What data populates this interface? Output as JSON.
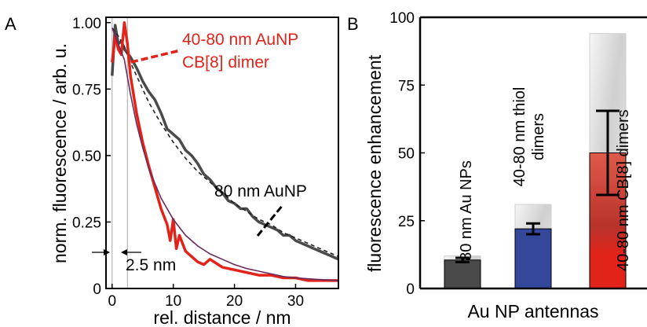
{
  "panels": {
    "a": "A",
    "b": "B"
  },
  "chart_data": [
    {
      "type": "line",
      "xlabel": "rel. distance / nm",
      "ylabel": "norm. fluorescence / arb. u.",
      "xlim": [
        -1,
        37
      ],
      "ylim": [
        0,
        1.02
      ],
      "xticks": [
        "0",
        "10",
        "20",
        "30"
      ],
      "yticks": [
        "0",
        "0.25",
        "0.50",
        "0.75",
        "1.00"
      ],
      "annotations": {
        "dimer_line1": "40-80 nm AuNP",
        "dimer_line2": "CB[8] dimer",
        "single": "80 nm AuNP",
        "gap": "2.5 nm"
      },
      "series": [
        {
          "key": "single",
          "color": "#4a4a4a",
          "x": [
            0,
            0.5,
            1,
            1.5,
            2,
            3,
            4,
            5,
            6,
            7,
            8,
            9,
            10,
            11,
            12,
            13,
            14,
            15,
            16,
            17,
            18,
            19,
            20,
            21,
            22,
            23,
            24,
            25,
            26,
            27,
            28,
            29,
            30,
            31,
            32,
            33,
            34,
            35,
            36,
            37
          ],
          "y": [
            0.8,
            0.99,
            0.92,
            0.93,
            0.9,
            0.87,
            0.83,
            0.78,
            0.74,
            0.71,
            0.66,
            0.6,
            0.58,
            0.56,
            0.52,
            0.5,
            0.47,
            0.43,
            0.41,
            0.38,
            0.36,
            0.33,
            0.32,
            0.3,
            0.3,
            0.27,
            0.25,
            0.24,
            0.23,
            0.22,
            0.2,
            0.2,
            0.18,
            0.17,
            0.16,
            0.15,
            0.14,
            0.13,
            0.12,
            0.11
          ]
        },
        {
          "key": "single-fit",
          "color": "#222222",
          "x": [
            0,
            1,
            2,
            3,
            4,
            6,
            8,
            10,
            12,
            14,
            16,
            18,
            20,
            22,
            24,
            26,
            28,
            30,
            32,
            34,
            36,
            37
          ],
          "y": [
            0.98,
            0.95,
            0.91,
            0.85,
            0.8,
            0.7,
            0.62,
            0.55,
            0.49,
            0.44,
            0.4,
            0.36,
            0.32,
            0.29,
            0.26,
            0.24,
            0.21,
            0.19,
            0.17,
            0.15,
            0.13,
            0.12
          ]
        },
        {
          "key": "dimer",
          "color": "#e2231a",
          "x": [
            0,
            0.5,
            1,
            1.5,
            2,
            2.5,
            3,
            4,
            5,
            6,
            7,
            8,
            9,
            9.5,
            10,
            10.5,
            11,
            12,
            13,
            14,
            15,
            16,
            18,
            20,
            22,
            24,
            26,
            28,
            30,
            32,
            34,
            36,
            37
          ],
          "y": [
            0.85,
            0.95,
            0.9,
            0.88,
            1.0,
            0.92,
            0.8,
            0.66,
            0.55,
            0.46,
            0.38,
            0.3,
            0.24,
            0.18,
            0.26,
            0.15,
            0.2,
            0.14,
            0.12,
            0.1,
            0.09,
            0.11,
            0.08,
            0.07,
            0.06,
            0.05,
            0.05,
            0.04,
            0.04,
            0.03,
            0.03,
            0.03,
            0.03
          ]
        },
        {
          "key": "dimer-fit",
          "color": "#6b2a5c",
          "x": [
            0,
            1,
            2,
            3,
            4,
            5,
            6,
            8,
            10,
            12,
            14,
            16,
            18,
            20,
            22,
            24,
            26,
            28,
            30,
            33,
            37
          ],
          "y": [
            0.98,
            0.92,
            0.86,
            0.73,
            0.62,
            0.53,
            0.45,
            0.34,
            0.26,
            0.2,
            0.16,
            0.13,
            0.11,
            0.09,
            0.075,
            0.065,
            0.055,
            0.045,
            0.04,
            0.035,
            0.03
          ]
        }
      ]
    },
    {
      "type": "bar",
      "xlabel": "Au NP antennas",
      "ylabel": "fluorescence enhancement",
      "ylim": [
        0,
        100
      ],
      "yticks": [
        "0",
        "25",
        "50",
        "75",
        "100"
      ],
      "categories": [
        "80 nm Au NPs",
        "40-80 nm thiol dimers",
        "40-80 nm CB[8] dimers"
      ],
      "category_lines": [
        [
          "80 nm Au NPs"
        ],
        [
          "40-80 nm thiol",
          "dimers"
        ],
        [
          "40-80 nm CB[8] dimers"
        ]
      ],
      "values": [
        10.5,
        22,
        50
      ],
      "max_values": [
        12,
        31,
        94
      ],
      "errors": [
        0.8,
        2,
        15.5
      ],
      "colors": [
        "#4a4a4a",
        "#33489b",
        "#e2231a"
      ]
    }
  ]
}
